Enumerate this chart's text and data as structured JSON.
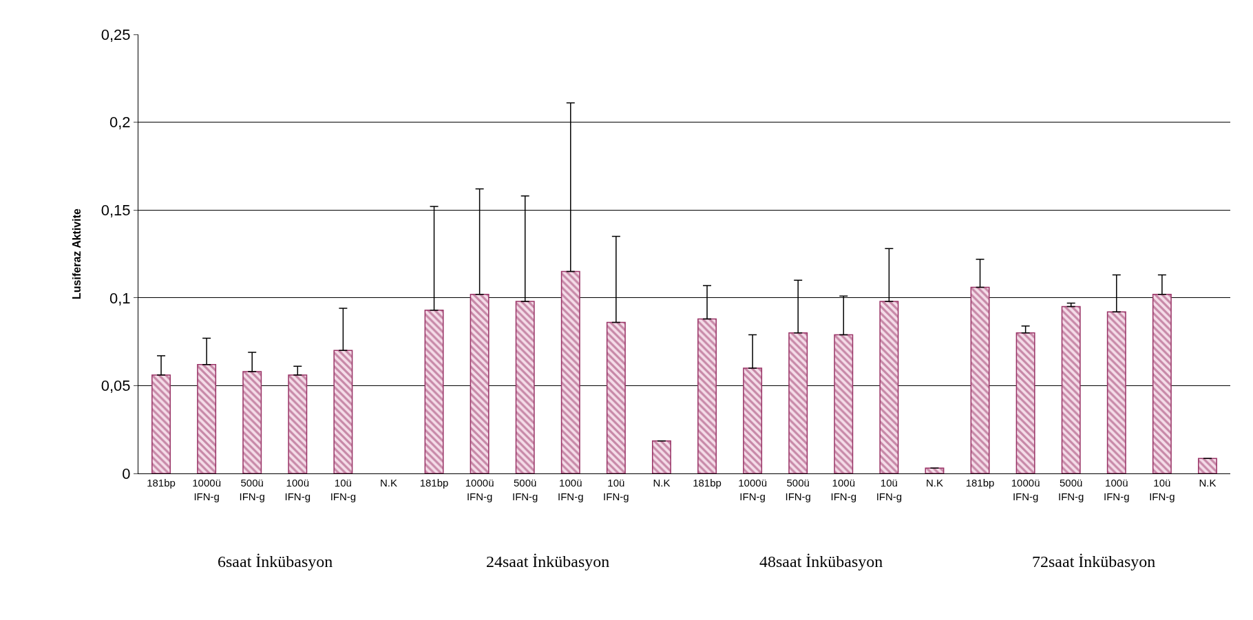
{
  "chart_data": {
    "type": "bar",
    "ylabel": "Lusiferaz Aktivite",
    "categories": [
      "181bp",
      "1000ü\nIFN-g",
      "500ü\nIFN-g",
      "100ü\nIFN-g",
      "10ü\nIFN-g",
      "N.K",
      "181bp",
      "1000ü\nIFN-g",
      "500ü\nIFN-g",
      "100ü\nIFN-g",
      "10ü\nIFN-g",
      "N.K",
      "181bp",
      "1000ü\nIFN-g",
      "500ü\nIFN-g",
      "100ü\nIFN-g",
      "10ü\nIFN-g",
      "N.K",
      "181bp",
      "1000ü\nIFN-g",
      "500ü\nIFN-g",
      "100ü\nIFN-g",
      "10ü\nIFN-g",
      "N.K"
    ],
    "values": [
      0.056,
      0.062,
      0.058,
      0.056,
      0.07,
      null,
      0.093,
      0.102,
      0.098,
      0.115,
      0.086,
      0.0185,
      0.088,
      0.06,
      0.08,
      0.079,
      0.098,
      0.003,
      0.106,
      0.08,
      0.095,
      0.092,
      0.102,
      0.0085
    ],
    "errors": [
      [
        0.056,
        0.067
      ],
      [
        0.062,
        0.077
      ],
      [
        0.058,
        0.069
      ],
      [
        0.056,
        0.061
      ],
      [
        0.07,
        0.094
      ],
      null,
      [
        0.093,
        0.152
      ],
      [
        0.102,
        0.162
      ],
      [
        0.098,
        0.158
      ],
      [
        0.115,
        0.211
      ],
      [
        0.086,
        0.135
      ],
      null,
      [
        0.088,
        0.107
      ],
      [
        0.06,
        0.079
      ],
      [
        0.08,
        0.11
      ],
      [
        0.079,
        0.101
      ],
      [
        0.098,
        0.128
      ],
      null,
      [
        0.106,
        0.122
      ],
      [
        0.08,
        0.084
      ],
      [
        0.095,
        0.097
      ],
      [
        0.092,
        0.113
      ],
      [
        0.102,
        0.113
      ],
      null
    ],
    "color": "#993366",
    "ylim": [
      0,
      0.25
    ],
    "yticks": [
      0,
      {
        "value": 0.05,
        "label": "0,05"
      },
      {
        "value": 0.1,
        "label": "0,1"
      },
      {
        "value": 0.15,
        "label": "0,15"
      },
      {
        "value": 0.2,
        "label": "0,2"
      },
      {
        "value": 0.25,
        "label": "0,25"
      }
    ],
    "grid": "y",
    "legend": false,
    "annotations": [
      "6saat İnkübasyon",
      "24saat İnkübasyon",
      "48saat İnkübasyon",
      "72saat İnkübasyon"
    ]
  }
}
